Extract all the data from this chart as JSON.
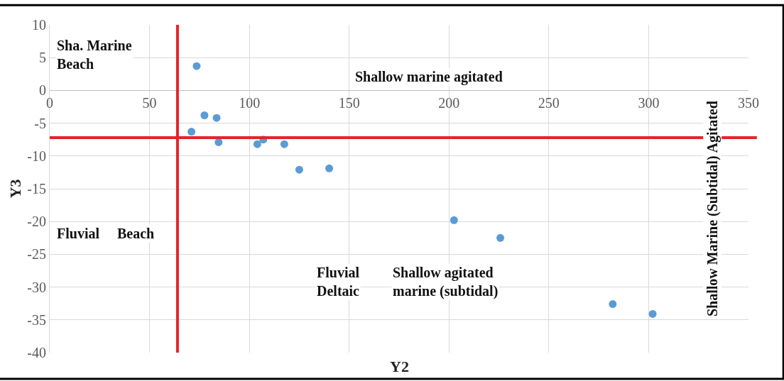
{
  "chart_data": {
    "type": "scatter",
    "xlabel": "Y2",
    "ylabel": "Y3",
    "x": [
      73.6,
      71,
      77.5,
      83.6,
      84.6,
      104,
      107,
      117.5,
      125,
      140,
      202.5,
      225.7,
      282,
      302
    ],
    "values": [
      3.7,
      -6.3,
      -3.8,
      -4.2,
      -7.9,
      -8.2,
      -7.5,
      -8.2,
      -12.1,
      -11.9,
      -19.8,
      -22.5,
      -32.6,
      -34.1
    ],
    "color": "#5b9bd5",
    "marker": "circle",
    "grid": true,
    "xlim": [
      0,
      350
    ],
    "xticks": [
      0,
      50,
      100,
      150,
      200,
      250,
      300,
      350
    ],
    "ylim": [
      -40,
      10
    ],
    "yticks": [
      -40,
      -35,
      -30,
      -25,
      -20,
      -15,
      -10,
      -5,
      0,
      5,
      10
    ],
    "ref_lines": [
      {
        "axis": "x",
        "value": 64,
        "color": "#e3242b"
      },
      {
        "axis": "y",
        "value": -7.2,
        "color": "#e3242b"
      }
    ],
    "annotations": [
      "Sha. Marine\nBeach",
      "Shallow marine agitated",
      "Fluvial",
      "Beach",
      "Fluvial\nDeltaic",
      "Shallow agitated\nmarine (subtidal)",
      "Shallow Marine (Subtidal) Agitated"
    ]
  }
}
